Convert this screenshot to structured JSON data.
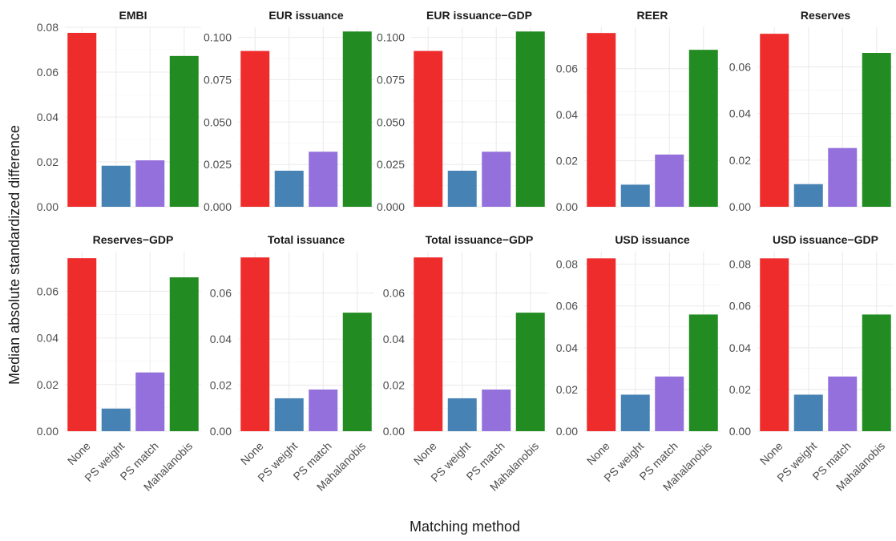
{
  "ylabel": "Median absolute standardized difference",
  "xlabel": "Matching method",
  "method_colors": {
    "None": "#EE2C2C",
    "PS weight": "#4682B4",
    "PS match": "#9370DB",
    "Mahalanobis": "#228B22"
  },
  "chart_data": [
    {
      "type": "bar",
      "title": "EMBI",
      "categories": [
        "None",
        "PS weight",
        "PS match",
        "Mahalanobis"
      ],
      "values": [
        0.0775,
        0.0183,
        0.0207,
        0.0672
      ],
      "ylim": [
        0,
        0.08
      ],
      "yticks": [
        0,
        0.02,
        0.04,
        0.06,
        0.08
      ],
      "ytick_labels": [
        "0.00",
        "0.02",
        "0.04",
        "0.06",
        "0.08"
      ]
    },
    {
      "type": "bar",
      "title": "EUR issuance",
      "categories": [
        "None",
        "PS weight",
        "PS match",
        "Mahalanobis"
      ],
      "values": [
        0.092,
        0.0213,
        0.0325,
        0.1035
      ],
      "ylim": [
        0,
        0.106
      ],
      "yticks": [
        0,
        0.025,
        0.05,
        0.075,
        0.1
      ],
      "ytick_labels": [
        "0.000",
        "0.025",
        "0.050",
        "0.075",
        "0.100"
      ]
    },
    {
      "type": "bar",
      "title": "EUR issuance−GDP",
      "categories": [
        "None",
        "PS weight",
        "PS match",
        "Mahalanobis"
      ],
      "values": [
        0.092,
        0.0213,
        0.0325,
        0.1035
      ],
      "ylim": [
        0,
        0.106
      ],
      "yticks": [
        0,
        0.025,
        0.05,
        0.075,
        0.1
      ],
      "ytick_labels": [
        "0.000",
        "0.025",
        "0.050",
        "0.075",
        "0.100"
      ]
    },
    {
      "type": "bar",
      "title": "REER",
      "categories": [
        "None",
        "PS weight",
        "PS match",
        "Mahalanobis"
      ],
      "values": [
        0.0755,
        0.0096,
        0.0227,
        0.0682
      ],
      "ylim": [
        0,
        0.078
      ],
      "yticks": [
        0,
        0.02,
        0.04,
        0.06
      ],
      "ytick_labels": [
        "0.00",
        "0.02",
        "0.04",
        "0.06"
      ]
    },
    {
      "type": "bar",
      "title": "Reserves",
      "categories": [
        "None",
        "PS weight",
        "PS match",
        "Mahalanobis"
      ],
      "values": [
        0.0742,
        0.0097,
        0.0252,
        0.066
      ],
      "ylim": [
        0,
        0.077
      ],
      "yticks": [
        0,
        0.02,
        0.04,
        0.06
      ],
      "ytick_labels": [
        "0.00",
        "0.02",
        "0.04",
        "0.06"
      ]
    },
    {
      "type": "bar",
      "title": "Reserves−GDP",
      "categories": [
        "None",
        "PS weight",
        "PS match",
        "Mahalanobis"
      ],
      "values": [
        0.0742,
        0.0097,
        0.0252,
        0.066
      ],
      "ylim": [
        0,
        0.077
      ],
      "yticks": [
        0,
        0.02,
        0.04,
        0.06
      ],
      "ytick_labels": [
        "0.00",
        "0.02",
        "0.04",
        "0.06"
      ]
    },
    {
      "type": "bar",
      "title": "Total issuance",
      "categories": [
        "None",
        "PS weight",
        "PS match",
        "Mahalanobis"
      ],
      "values": [
        0.0755,
        0.0143,
        0.0181,
        0.0515
      ],
      "ylim": [
        0,
        0.078
      ],
      "yticks": [
        0,
        0.02,
        0.04,
        0.06
      ],
      "ytick_labels": [
        "0.00",
        "0.02",
        "0.04",
        "0.06"
      ]
    },
    {
      "type": "bar",
      "title": "Total issuance−GDP",
      "categories": [
        "None",
        "PS weight",
        "PS match",
        "Mahalanobis"
      ],
      "values": [
        0.0755,
        0.0143,
        0.0181,
        0.0515
      ],
      "ylim": [
        0,
        0.078
      ],
      "yticks": [
        0,
        0.02,
        0.04,
        0.06
      ],
      "ytick_labels": [
        "0.00",
        "0.02",
        "0.04",
        "0.06"
      ]
    },
    {
      "type": "bar",
      "title": "USD issuance",
      "categories": [
        "None",
        "PS weight",
        "PS match",
        "Mahalanobis"
      ],
      "values": [
        0.0828,
        0.0175,
        0.0262,
        0.0559
      ],
      "ylim": [
        0,
        0.086
      ],
      "yticks": [
        0,
        0.02,
        0.04,
        0.06,
        0.08
      ],
      "ytick_labels": [
        "0.00",
        "0.02",
        "0.04",
        "0.06",
        "0.08"
      ]
    },
    {
      "type": "bar",
      "title": "USD issuance−GDP",
      "categories": [
        "None",
        "PS weight",
        "PS match",
        "Mahalanobis"
      ],
      "values": [
        0.0828,
        0.0175,
        0.0262,
        0.0559
      ],
      "ylim": [
        0,
        0.086
      ],
      "yticks": [
        0,
        0.02,
        0.04,
        0.06,
        0.08
      ],
      "ytick_labels": [
        "0.00",
        "0.02",
        "0.04",
        "0.06",
        "0.08"
      ]
    }
  ]
}
